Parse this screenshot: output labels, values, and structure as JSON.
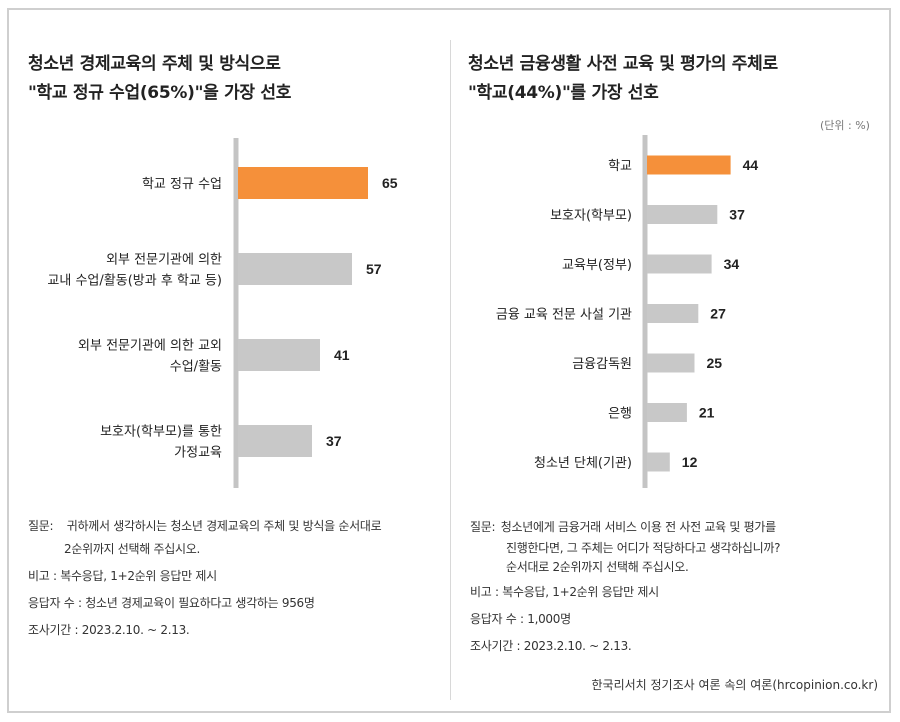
{
  "colors": {
    "highlight": "#f5903a",
    "bar": "#c8c8c8",
    "axis": "#c4c4c4",
    "text": "#222222"
  },
  "chart_data": [
    {
      "type": "bar",
      "orientation": "horizontal",
      "title_lines": [
        "청소년 경제교육의 주체 및 방식으로",
        "\"학교 정규 수업(65%)\"을 가장 선호"
      ],
      "categories": [
        [
          "학교 정규 수업"
        ],
        [
          "외부 전문기관에 의한",
          "교내 수업/활동(방과 후 학교 등)"
        ],
        [
          "외부 전문기관에 의한 교외",
          "수업/활동"
        ],
        [
          "보호자(학부모)를 통한",
          "가정교육"
        ]
      ],
      "values": [
        65,
        57,
        41,
        37
      ],
      "highlight_index": 0,
      "xlim": [
        0,
        100
      ],
      "notes": {
        "question_label": "질문:",
        "question_lines": [
          "귀하께서 생각하시는 청소년 경제교육의 주체 및 방식을 순서대로",
          "2순위까지 선택해 주십시오."
        ],
        "remark": "비고 : 복수응답, 1+2순위 응답만 제시",
        "respondents": "응답자 수 : 청소년 경제교육이 필요하다고 생각하는 956명",
        "period": "조사기간 : 2023.2.10. ~ 2.13."
      }
    },
    {
      "type": "bar",
      "orientation": "horizontal",
      "title_lines": [
        "청소년 금융생활 사전 교육 및 평가의 주체로",
        "\"학교(44%)\"를 가장 선호"
      ],
      "unit_label": "(단위 : %)",
      "categories": [
        [
          "학교"
        ],
        [
          "보호자(학부모)"
        ],
        [
          "교육부(정부)"
        ],
        [
          "금융 교육 전문 사설 기관"
        ],
        [
          "금융감독원"
        ],
        [
          "은행"
        ],
        [
          "청소년 단체(기관)"
        ]
      ],
      "values": [
        44,
        37,
        34,
        27,
        25,
        21,
        12
      ],
      "highlight_index": 0,
      "xlim": [
        0,
        100
      ],
      "notes": {
        "question_label": "질문:",
        "question_lines": [
          "청소년에게 금융거래 서비스 이용 전 사전 교육 및 평가를",
          "진행한다면, 그 주체는 어디가 적당하다고 생각하십니까?",
          "순서대로 2순위까지 선택해 주십시오."
        ],
        "remark": "비고 : 복수응답, 1+2순위 응답만 제시",
        "respondents": "응답자 수 : 1,000명",
        "period": "조사기간 : 2023.2.10. ~ 2.13."
      }
    }
  ],
  "source": "한국리서치 정기조사 여론 속의 여론(hrcopinion.co.kr)"
}
